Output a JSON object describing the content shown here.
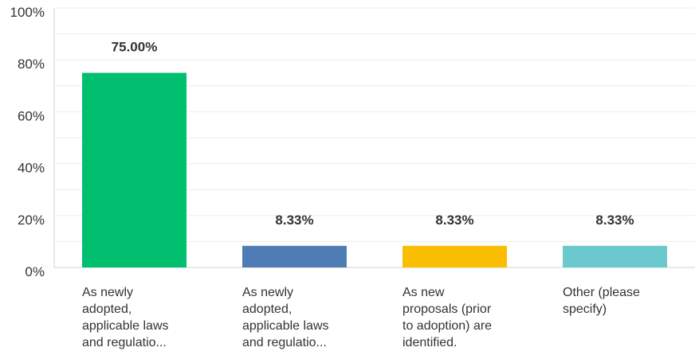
{
  "chart_data": {
    "type": "bar",
    "categories": [
      "As newly adopted, applicable laws and regulatio...",
      "As newly adopted, applicable laws and regulatio...",
      "As new proposals (prior to adoption) are identified.",
      "Other (please specify)"
    ],
    "category_lines": [
      [
        "As newly",
        "adopted,",
        "applicable laws",
        "and regulatio..."
      ],
      [
        "As newly",
        "adopted,",
        "applicable laws",
        "and regulatio..."
      ],
      [
        "As new",
        "proposals (prior",
        "to adoption) are",
        "identified."
      ],
      [
        "Other (please",
        "specify)"
      ]
    ],
    "values": [
      75.0,
      8.33,
      8.33,
      8.33
    ],
    "data_labels": [
      "75.00%",
      "8.33%",
      "8.33%",
      "8.33%"
    ],
    "colors": [
      "#00bf6f",
      "#507cb6",
      "#f9be00",
      "#6bc8cd"
    ],
    "yticks": [
      0,
      20,
      40,
      60,
      80,
      100
    ],
    "ytick_labels": [
      "0%",
      "20%",
      "40%",
      "60%",
      "80%",
      "100%"
    ],
    "ylim": [
      0,
      100
    ],
    "grid": true,
    "title": "",
    "xlabel": "",
    "ylabel": ""
  }
}
